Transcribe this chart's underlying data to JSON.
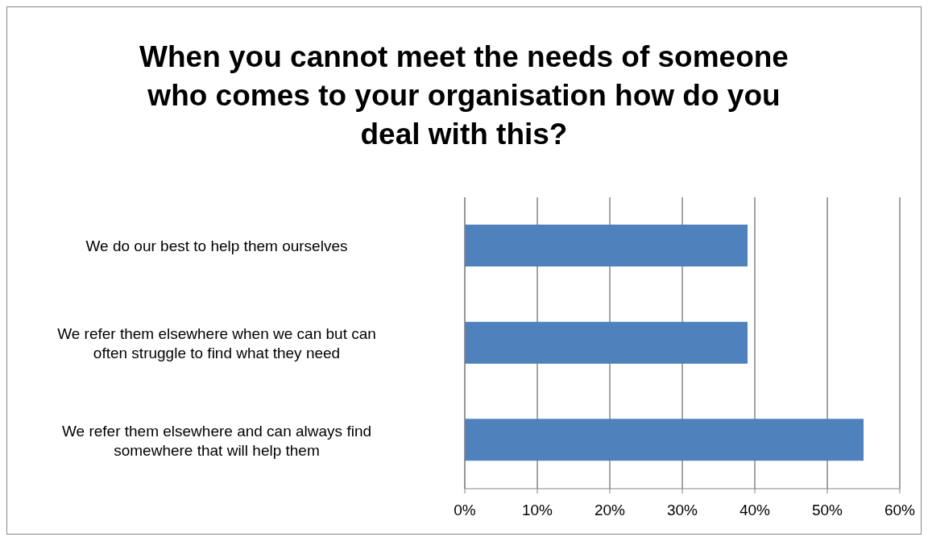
{
  "chart_data": {
    "type": "bar",
    "orientation": "horizontal",
    "title": "When you cannot meet the needs of someone who comes to your organisation how do you deal with this?",
    "categories": [
      "We do our best to help them ourselves",
      "We refer them elsewhere when we can but can often struggle to find what they need",
      "We refer them elsewhere and can always find somewhere that will help them"
    ],
    "values": [
      39,
      39,
      55
    ],
    "color": "#4f81bd",
    "xlim": [
      0,
      60
    ],
    "xticks": [
      {
        "value": 0,
        "label": "0%"
      },
      {
        "value": 10,
        "label": "10%"
      },
      {
        "value": 20,
        "label": "20%"
      },
      {
        "value": 30,
        "label": "30%"
      },
      {
        "value": 40,
        "label": "40%"
      },
      {
        "value": 50,
        "label": "50%"
      },
      {
        "value": 60,
        "label": "60%"
      }
    ],
    "grid": "x",
    "legend": false
  }
}
